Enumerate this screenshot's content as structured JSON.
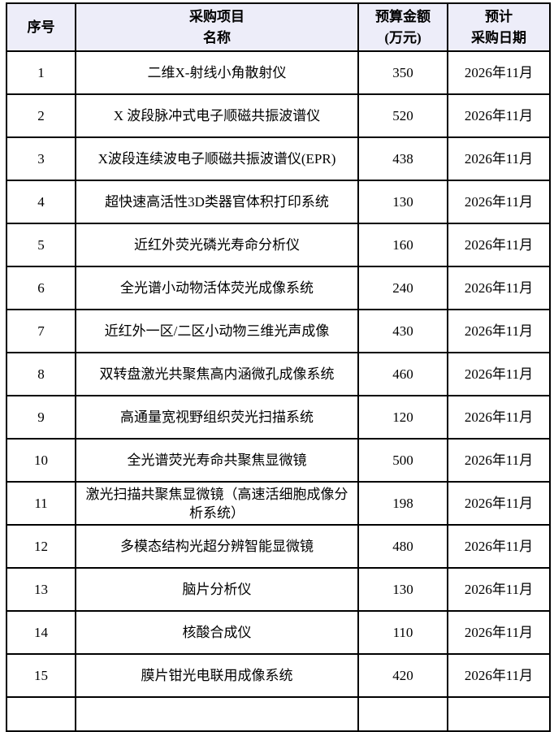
{
  "table": {
    "header_bg": "#ededf9",
    "border_color": "#000000",
    "headers": {
      "serial": {
        "line1": "序号"
      },
      "project": {
        "line1": "采购项目",
        "line2": "名称"
      },
      "budget": {
        "line1": "预算金额",
        "line2": "(万元)"
      },
      "date": {
        "line1": "预计",
        "line2": "采购日期"
      }
    },
    "rows": [
      {
        "no": "1",
        "name": "二维X-射线小角散射仪",
        "budget": "350",
        "date": "2026年11月"
      },
      {
        "no": "2",
        "name": "X 波段脉冲式电子顺磁共振波谱仪",
        "budget": "520",
        "date": "2026年11月"
      },
      {
        "no": "3",
        "name": "X波段连续波电子顺磁共振波谱仪(EPR)",
        "budget": "438",
        "date": "2026年11月"
      },
      {
        "no": "4",
        "name": "超快速高活性3D类器官体积打印系统",
        "budget": "130",
        "date": "2026年11月"
      },
      {
        "no": "5",
        "name": "近红外荧光磷光寿命分析仪",
        "budget": "160",
        "date": "2026年11月"
      },
      {
        "no": "6",
        "name": "全光谱小动物活体荧光成像系统",
        "budget": "240",
        "date": "2026年11月"
      },
      {
        "no": "7",
        "name": "近红外一区/二区小动物三维光声成像",
        "budget": "430",
        "date": "2026年11月"
      },
      {
        "no": "8",
        "name": "双转盘激光共聚焦高内涵微孔成像系统",
        "budget": "460",
        "date": "2026年11月"
      },
      {
        "no": "9",
        "name": "高通量宽视野组织荧光扫描系统",
        "budget": "120",
        "date": "2026年11月"
      },
      {
        "no": "10",
        "name": "全光谱荧光寿命共聚焦显微镜",
        "budget": "500",
        "date": "2026年11月"
      },
      {
        "no": "11",
        "name": "激光扫描共聚焦显微镜（高速活细胞成像分析系统）",
        "budget": "198",
        "date": "2026年11月"
      },
      {
        "no": "12",
        "name": "多模态结构光超分辨智能显微镜",
        "budget": "480",
        "date": "2026年11月"
      },
      {
        "no": "13",
        "name": "脑片分析仪",
        "budget": "130",
        "date": "2026年11月"
      },
      {
        "no": "14",
        "name": "核酸合成仪",
        "budget": "110",
        "date": "2026年11月"
      },
      {
        "no": "15",
        "name": "膜片钳光电联用成像系统",
        "budget": "420",
        "date": "2026年11月"
      }
    ]
  }
}
